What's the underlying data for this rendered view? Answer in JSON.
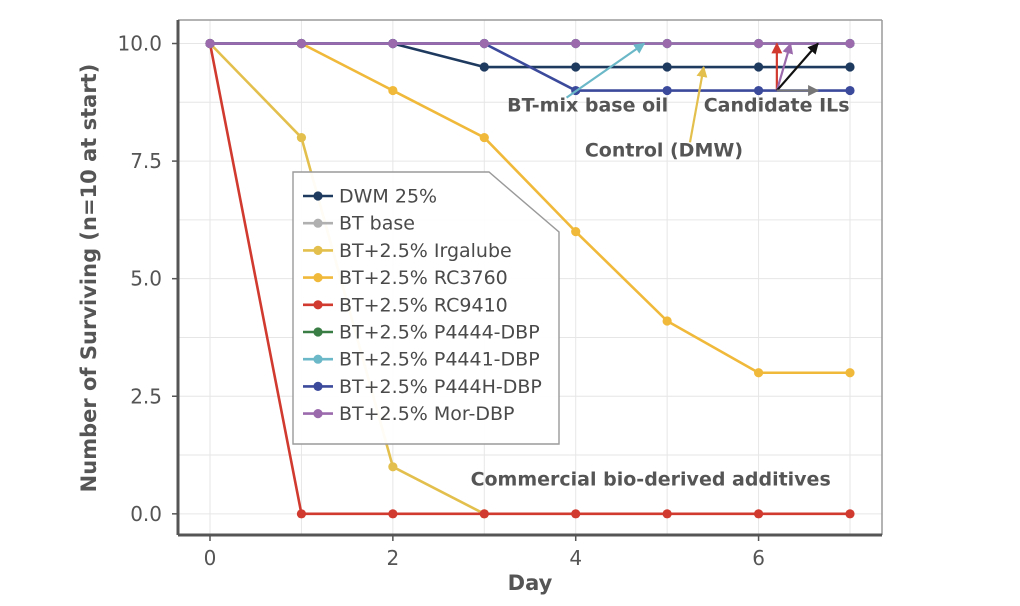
{
  "chart_data": {
    "type": "line",
    "xlabel": "Day",
    "ylabel": "Number of Surviving (n=10 at start)",
    "xlim": [
      -0.35,
      7.35
    ],
    "ylim": [
      -0.45,
      10.5
    ],
    "xticks": [
      0,
      2,
      4,
      6
    ],
    "yticks": [
      0.0,
      2.5,
      5.0,
      7.5,
      10.0
    ],
    "ytick_labels": [
      "0.0",
      "2.5",
      "5.0",
      "7.5",
      "10.0"
    ],
    "grid": true,
    "legend_position": "upper-left-center",
    "series": [
      {
        "name": "DWM 25%",
        "color": "#1f3a5f",
        "x": [
          0,
          1,
          2,
          3,
          4,
          5,
          6,
          7
        ],
        "y": [
          10,
          10,
          10,
          9.5,
          9.5,
          9.5,
          9.5,
          9.5
        ]
      },
      {
        "name": "BT base",
        "color": "#b0b0b0",
        "x": [
          0,
          1,
          2,
          3,
          4,
          5,
          6,
          7
        ],
        "y": [
          10,
          10,
          10,
          10,
          10,
          10,
          10,
          10
        ]
      },
      {
        "name": "BT+2.5% Irgalube",
        "color": "#e3c04d",
        "x": [
          0,
          1,
          2,
          3
        ],
        "y": [
          10,
          8,
          1,
          0
        ]
      },
      {
        "name": "BT+2.5% RC3760",
        "color": "#f0b93a",
        "x": [
          0,
          1,
          2,
          3,
          4,
          5,
          6,
          7
        ],
        "y": [
          10,
          10,
          9,
          8,
          6,
          4.1,
          3,
          3
        ]
      },
      {
        "name": "BT+2.5% RC9410",
        "color": "#d03a2f",
        "x": [
          0,
          1,
          2,
          3,
          4,
          5,
          6,
          7
        ],
        "y": [
          10,
          0,
          0,
          0,
          0,
          0,
          0,
          0
        ]
      },
      {
        "name": "BT+2.5% P4444-DBP",
        "color": "#3a7d44",
        "x": [
          0,
          1,
          2,
          3,
          4,
          5,
          6,
          7
        ],
        "y": [
          10,
          10,
          10,
          10,
          10,
          10,
          10,
          10
        ]
      },
      {
        "name": "BT+2.5% P4441-DBP",
        "color": "#6bb8c8",
        "x": [
          0,
          1,
          2,
          3,
          4,
          5,
          6,
          7
        ],
        "y": [
          10,
          10,
          10,
          10,
          10,
          10,
          10,
          10
        ]
      },
      {
        "name": "BT+2.5% P444H-DBP",
        "color": "#3c4a9c",
        "x": [
          0,
          1,
          2,
          3,
          4,
          5,
          6,
          7
        ],
        "y": [
          10,
          10,
          10,
          10,
          9,
          9,
          9,
          9
        ]
      },
      {
        "name": "BT+2.5% Mor-DBP",
        "color": "#9b6aad",
        "x": [
          0,
          1,
          2,
          3,
          4,
          5,
          6,
          7
        ],
        "y": [
          10,
          10,
          10,
          10,
          10,
          10,
          10,
          10
        ]
      }
    ],
    "annotations": [
      {
        "text": "BT-mix base oil",
        "label_at": [
          3.25,
          8.55
        ],
        "arrows": [
          {
            "from": [
              3.9,
              8.85
            ],
            "to": [
              4.75,
              10.0
            ],
            "color": "#6bb8c8"
          }
        ]
      },
      {
        "text": "Control (DMW)",
        "label_at": [
          4.1,
          7.6
        ],
        "arrows": [
          {
            "from": [
              5.25,
              7.9
            ],
            "to": [
              5.4,
              9.5
            ],
            "color": "#e3c04d"
          }
        ]
      },
      {
        "text": "Candidate ILs",
        "label_at": [
          5.4,
          8.55
        ],
        "arrows": [
          {
            "from": [
              6.2,
              9.0
            ],
            "to": [
              6.2,
              10.0
            ],
            "color": "#d03a2f"
          },
          {
            "from": [
              6.2,
              9.0
            ],
            "to": [
              6.35,
              10.0
            ],
            "color": "#9b6aad"
          },
          {
            "from": [
              6.2,
              9.0
            ],
            "to": [
              6.65,
              10.0
            ],
            "color": "#111111"
          },
          {
            "from": [
              6.2,
              9.0
            ],
            "to": [
              6.65,
              9.0
            ],
            "color": "#777777"
          }
        ]
      },
      {
        "text": "Commercial bio-derived additives",
        "label_at": [
          2.85,
          0.6
        ],
        "arrows": []
      }
    ]
  }
}
